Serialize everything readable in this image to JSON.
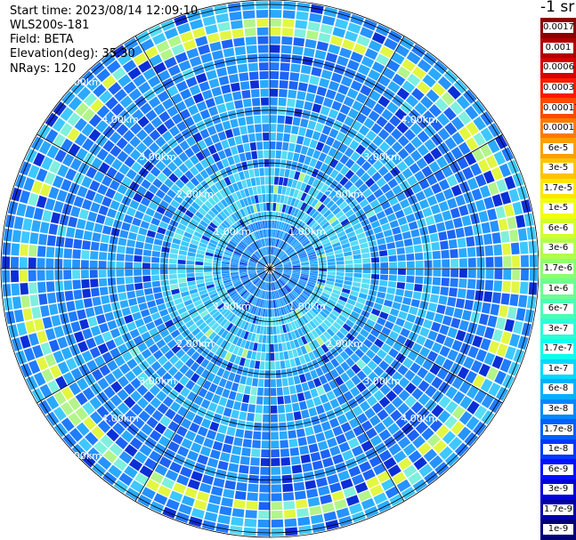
{
  "info": {
    "start_time": "Start time: 2023/08/14 12:09:10",
    "instrument": "WLS200s-181",
    "field": "Field: BETA",
    "elevation": "Elevation(deg): 35.30",
    "nrays": "NRays: 120"
  },
  "colorbar": {
    "units_label": "-1 sr",
    "entries": [
      {
        "label": "0.0017",
        "color": "#8b0000"
      },
      {
        "label": "0.001",
        "color": "#b00000"
      },
      {
        "label": "0.0006",
        "color": "#d60000"
      },
      {
        "label": "0.0003",
        "color": "#ff1a00"
      },
      {
        "label": "0.00017",
        "color": "#ff4a00"
      },
      {
        "label": "0.0001",
        "color": "#ff7a00"
      },
      {
        "label": "6e-5",
        "color": "#ff9f00"
      },
      {
        "label": "3e-5",
        "color": "#ffc400"
      },
      {
        "label": "1.7e-5",
        "color": "#ffe600"
      },
      {
        "label": "1e-5",
        "color": "#f2ff0a"
      },
      {
        "label": "6e-6",
        "color": "#d2ff2a"
      },
      {
        "label": "3e-6",
        "color": "#b0ff4d"
      },
      {
        "label": "1.7e-6",
        "color": "#8dff70"
      },
      {
        "label": "1e-6",
        "color": "#6bff92"
      },
      {
        "label": "6e-7",
        "color": "#4affb5"
      },
      {
        "label": "3e-7",
        "color": "#29ffd8"
      },
      {
        "label": "1.7e-7",
        "color": "#0affee"
      },
      {
        "label": "1e-7",
        "color": "#00d8ff"
      },
      {
        "label": "6e-8",
        "color": "#00b0ff"
      },
      {
        "label": "3e-8",
        "color": "#0088ff"
      },
      {
        "label": "1.7e-8",
        "color": "#0060ff"
      },
      {
        "label": "1e-8",
        "color": "#0038ff"
      },
      {
        "label": "6e-9",
        "color": "#0010ff"
      },
      {
        "label": "3e-9",
        "color": "#0000d8"
      },
      {
        "label": "1.7e-9",
        "color": "#0000a8"
      },
      {
        "label": "1e-9",
        "color": "#000078"
      }
    ]
  },
  "range_rings": {
    "labels_km": [
      "1.00km",
      "2.00km",
      "3.00km",
      "4.00km",
      "5.00km"
    ]
  },
  "scan": {
    "rays": 120,
    "gates": 30,
    "palette": [
      "#0a2fd6",
      "#1a4cf0",
      "#1c62f5",
      "#1f7bff",
      "#2693ff",
      "#2aaaff",
      "#3ec8ff",
      "#56ddf5",
      "#7ff0dd",
      "#b3f58a",
      "#e3f740"
    ]
  }
}
